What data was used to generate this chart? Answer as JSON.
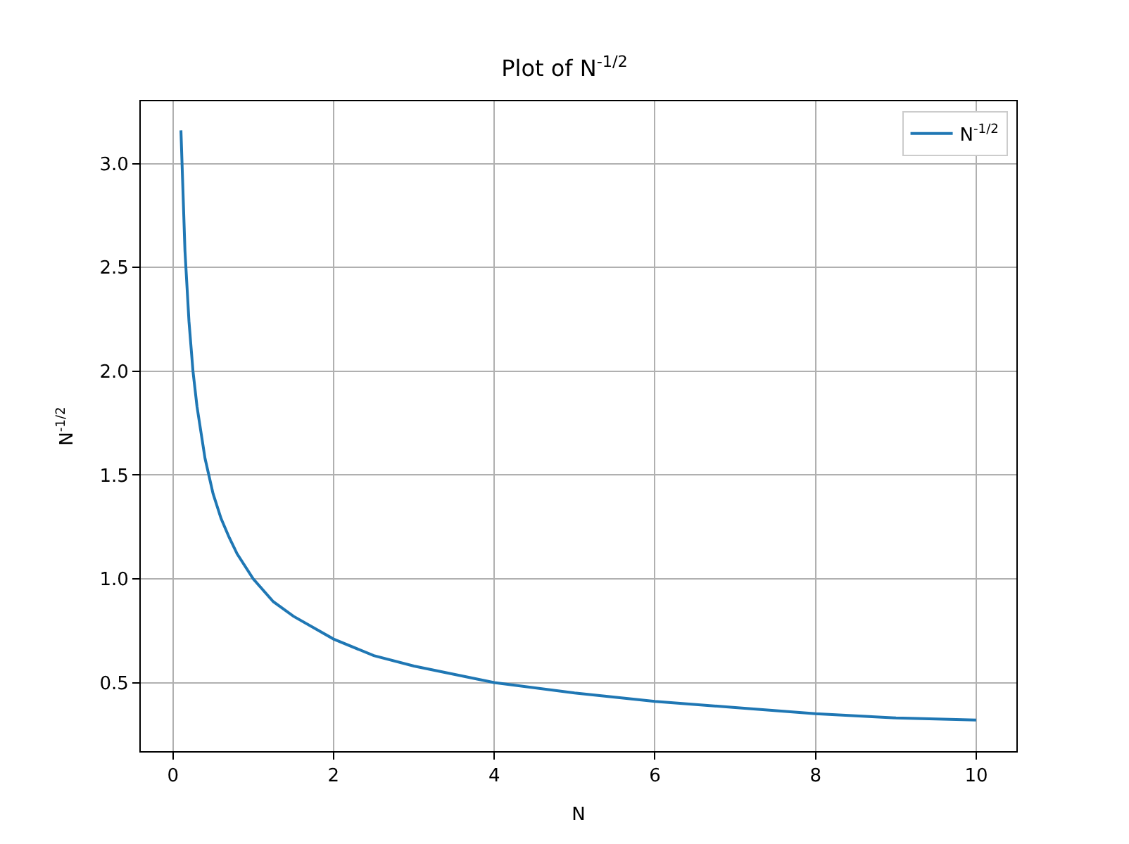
{
  "chart_data": {
    "type": "line",
    "title": "Plot of N$^{-1/2}$",
    "xlabel": "N",
    "ylabel": "N$^{-1/2}$",
    "x": [
      0.1,
      0.15,
      0.2,
      0.25,
      0.3,
      0.4,
      0.5,
      0.6,
      0.7,
      0.8,
      1,
      1.25,
      1.5,
      2,
      2.5,
      3,
      4,
      5,
      6,
      7,
      8,
      9,
      10
    ],
    "series": [
      {
        "name": "N$^{-1/2}$",
        "color": "#1f77b4",
        "values": [
          3.16,
          2.58,
          2.24,
          2.0,
          1.83,
          1.58,
          1.41,
          1.29,
          1.2,
          1.12,
          1.0,
          0.89,
          0.82,
          0.71,
          0.63,
          0.58,
          0.5,
          0.45,
          0.41,
          0.38,
          0.35,
          0.33,
          0.32
        ]
      }
    ],
    "xlim": [
      -0.4,
      10.5
    ],
    "xticks": [
      0,
      2,
      4,
      6,
      8,
      10
    ],
    "ylim": [
      0.17,
      3.3
    ],
    "yticks": [
      {
        "value": 0.5,
        "label": "0.5"
      },
      {
        "value": 1.0,
        "label": "1.0"
      },
      {
        "value": 1.5,
        "label": "1.5"
      },
      {
        "value": 2.0,
        "label": "2.0"
      },
      {
        "value": 2.5,
        "label": "2.5"
      },
      {
        "value": 3.0,
        "label": "3.0"
      }
    ],
    "grid": true,
    "legend": "top right",
    "marker": "none",
    "line_style": "solid"
  }
}
